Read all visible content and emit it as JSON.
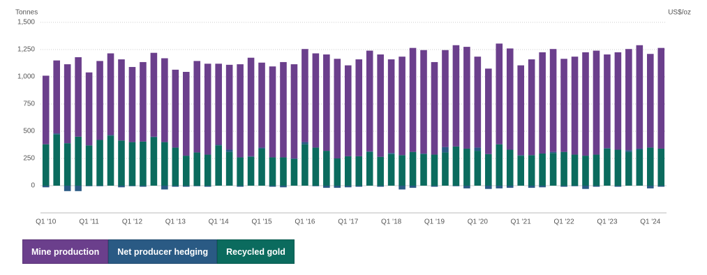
{
  "chart_data": {
    "type": "bar",
    "stacked": true,
    "y_label": "Tonnes",
    "y2_label": "US$/oz",
    "categories": [
      "Q1 '10",
      null,
      null,
      null,
      "Q1 '11",
      null,
      null,
      null,
      "Q1 '12",
      null,
      null,
      null,
      "Q1 '13",
      null,
      null,
      null,
      "Q1 '14",
      null,
      null,
      null,
      "Q1 '15",
      null,
      null,
      null,
      "Q1 '16",
      null,
      null,
      null,
      "Q1 '17",
      null,
      null,
      null,
      "Q1 '18",
      null,
      null,
      null,
      "Q1 '19",
      null,
      null,
      null,
      "Q1 '20",
      null,
      null,
      null,
      "Q1 '21",
      null,
      null,
      null,
      "Q1 '22",
      null,
      null,
      null,
      "Q1 '23",
      null,
      null,
      null,
      "Q1 '24",
      null
    ],
    "series": [
      {
        "name": "Mine production",
        "color": "#6b3f8c",
        "values": [
          630,
          670,
          725,
          730,
          670,
          725,
          750,
          745,
          690,
          730,
          770,
          770,
          715,
          770,
          840,
          835,
          745,
          780,
          855,
          905,
          780,
          835,
          875,
          865,
          855,
          865,
          885,
          915,
          835,
          890,
          925,
          940,
          860,
          905,
          955,
          950,
          850,
          890,
          930,
          935,
          835,
          785,
          925,
          930,
          825,
          880,
          930,
          945,
          855,
          900,
          950,
          955,
          860,
          895,
          930,
          950,
          860,
          925
        ]
      },
      {
        "name": "Net producer hedging",
        "color": "#2a5a84",
        "values": [
          -15,
          10,
          -50,
          -50,
          -5,
          -5,
          5,
          -15,
          -5,
          -10,
          5,
          -35,
          -10,
          -10,
          -5,
          -10,
          5,
          20,
          -10,
          5,
          10,
          -10,
          -15,
          5,
          20,
          -5,
          -20,
          -20,
          -15,
          -10,
          5,
          -10,
          10,
          -35,
          -20,
          5,
          -10,
          50,
          -5,
          -25,
          30,
          -30,
          -25,
          -20,
          5,
          -20,
          -15,
          10,
          -10,
          -5,
          -30,
          -10,
          5,
          -10,
          15,
          10,
          -25,
          -10
        ]
      },
      {
        "name": "Recycled gold",
        "color": "#0b6b5e",
        "values": [
          380,
          470,
          390,
          450,
          370,
          420,
          460,
          415,
          400,
          405,
          445,
          400,
          350,
          275,
          305,
          285,
          370,
          310,
          260,
          265,
          340,
          260,
          260,
          245,
          380,
          350,
          320,
          250,
          270,
          270,
          310,
          265,
          290,
          280,
          310,
          290,
          285,
          305,
          360,
          340,
          320,
          290,
          380,
          330,
          275,
          280,
          295,
          300,
          310,
          285,
          275,
          285,
          340,
          330,
          310,
          330,
          350,
          340
        ]
      }
    ],
    "ylim": [
      -250,
      1500
    ],
    "yticks": [
      0,
      250,
      500,
      750,
      {
        "value": 1000,
        "label": "1,000"
      },
      {
        "value": 1250,
        "label": "1,250"
      },
      {
        "value": 1500,
        "label": "1,500"
      }
    ],
    "grid": true
  }
}
